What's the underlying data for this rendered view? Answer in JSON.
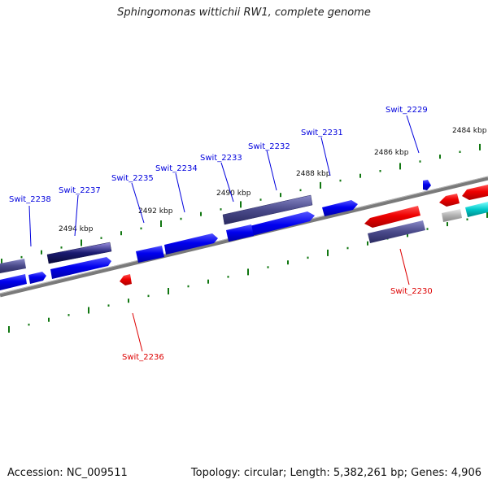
{
  "title": "Sphingomonas wittichii RW1, complete genome",
  "accession": "Accession: NC_009511",
  "summary": "Topology: circular; Length: 5,382,261 bp; Genes: 4,906",
  "ruler_labels": [
    "2484 kbp",
    "2486 kbp",
    "2488 kbp",
    "2490 kbp",
    "2492 kbp",
    "2494 kbp"
  ],
  "gene_labels": {
    "forward": [
      "Swit_2229",
      "Swit_2231",
      "Swit_2232",
      "Swit_2233",
      "Swit_2234",
      "Swit_2235",
      "Swit_2237",
      "Swit_2238"
    ],
    "reverse": [
      "Swit_2230",
      "Swit_2236"
    ]
  },
  "colors": {
    "forward_label": "#0000dd",
    "reverse_label": "#dd0000",
    "cds_blue": "#0000ee",
    "cds_red": "#ee0000",
    "cds_purple": "#4a4a8a",
    "cds_cyan": "#00c8c8",
    "cds_grey": "#b0b0b0",
    "tick": "#117711",
    "backbone": "#808080"
  }
}
